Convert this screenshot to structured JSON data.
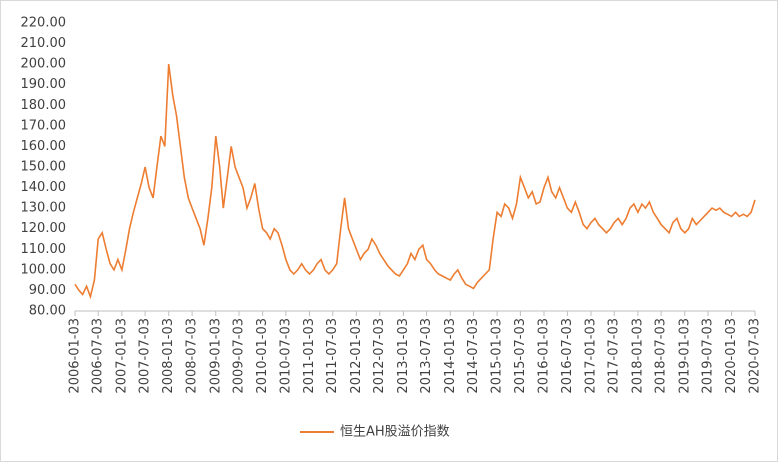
{
  "chart_data": {
    "type": "line",
    "series": [
      {
        "name": "恒生AH股溢价指数",
        "color": "#ED7D31",
        "values": [
          93,
          90,
          88,
          92,
          87,
          95,
          115,
          118,
          110,
          103,
          100,
          105,
          100,
          110,
          120,
          128,
          135,
          142,
          150,
          140,
          135,
          150,
          165,
          160,
          200,
          185,
          175,
          160,
          145,
          135,
          130,
          125,
          120,
          112,
          125,
          140,
          165,
          150,
          130,
          145,
          160,
          150,
          145,
          140,
          130,
          135,
          142,
          130,
          120,
          118,
          115,
          120,
          118,
          112,
          105,
          100,
          98,
          100,
          103,
          100,
          98,
          100,
          103,
          105,
          100,
          98,
          100,
          103,
          120,
          135,
          120,
          115,
          110,
          105,
          108,
          110,
          115,
          112,
          108,
          105,
          102,
          100,
          98,
          97,
          100,
          103,
          108,
          105,
          110,
          112,
          105,
          103,
          100,
          98,
          97,
          96,
          95,
          98,
          100,
          96,
          93,
          92,
          91,
          94,
          96,
          98,
          100,
          115,
          128,
          126,
          132,
          130,
          125,
          132,
          145,
          140,
          135,
          138,
          132,
          133,
          140,
          145,
          138,
          135,
          140,
          135,
          130,
          128,
          133,
          128,
          122,
          120,
          123,
          125,
          122,
          120,
          118,
          120,
          123,
          125,
          122,
          125,
          130,
          132,
          128,
          132,
          130,
          133,
          128,
          125,
          122,
          120,
          118,
          123,
          125,
          120,
          118,
          120,
          125,
          122,
          124,
          126,
          128,
          130,
          129,
          130,
          128,
          127,
          126,
          128,
          126,
          127,
          126,
          128,
          134
        ]
      }
    ],
    "x": [
      "2006-01-03",
      "2006-02-03",
      "2006-03-03",
      "2006-04-03",
      "2006-05-03",
      "2006-06-03",
      "2006-07-03",
      "2006-08-03",
      "2006-09-03",
      "2006-10-03",
      "2006-11-03",
      "2006-12-03",
      "2007-01-03",
      "2007-02-03",
      "2007-03-03",
      "2007-04-03",
      "2007-05-03",
      "2007-06-03",
      "2007-07-03",
      "2007-08-03",
      "2007-09-03",
      "2007-10-03",
      "2007-11-03",
      "2007-12-03",
      "2008-01-03",
      "2008-02-03",
      "2008-03-03",
      "2008-04-03",
      "2008-05-03",
      "2008-06-03",
      "2008-07-03",
      "2008-08-03",
      "2008-09-03",
      "2008-10-03",
      "2008-11-03",
      "2008-12-03",
      "2009-01-03",
      "2009-02-03",
      "2009-03-03",
      "2009-04-03",
      "2009-05-03",
      "2009-06-03",
      "2009-07-03",
      "2009-08-03",
      "2009-09-03",
      "2009-10-03",
      "2009-11-03",
      "2009-12-03",
      "2010-01-03",
      "2010-02-03",
      "2010-03-03",
      "2010-04-03",
      "2010-05-03",
      "2010-06-03",
      "2010-07-03",
      "2010-08-03",
      "2010-09-03",
      "2010-10-03",
      "2010-11-03",
      "2010-12-03",
      "2011-01-03",
      "2011-02-03",
      "2011-03-03",
      "2011-04-03",
      "2011-05-03",
      "2011-06-03",
      "2011-07-03",
      "2011-08-03",
      "2011-09-03",
      "2011-10-03",
      "2011-11-03",
      "2011-12-03",
      "2012-01-03",
      "2012-02-03",
      "2012-03-03",
      "2012-04-03",
      "2012-05-03",
      "2012-06-03",
      "2012-07-03",
      "2012-08-03",
      "2012-09-03",
      "2012-10-03",
      "2012-11-03",
      "2012-12-03",
      "2013-01-03",
      "2013-02-03",
      "2013-03-03",
      "2013-04-03",
      "2013-05-03",
      "2013-06-03",
      "2013-07-03",
      "2013-08-03",
      "2013-09-03",
      "2013-10-03",
      "2013-11-03",
      "2013-12-03",
      "2014-01-03",
      "2014-02-03",
      "2014-03-03",
      "2014-04-03",
      "2014-05-03",
      "2014-06-03",
      "2014-07-03",
      "2014-08-03",
      "2014-09-03",
      "2014-10-03",
      "2014-11-03",
      "2014-12-03",
      "2015-01-03",
      "2015-02-03",
      "2015-03-03",
      "2015-04-03",
      "2015-05-03",
      "2015-06-03",
      "2015-07-03",
      "2015-08-03",
      "2015-09-03",
      "2015-10-03",
      "2015-11-03",
      "2015-12-03",
      "2016-01-03",
      "2016-02-03",
      "2016-03-03",
      "2016-04-03",
      "2016-05-03",
      "2016-06-03",
      "2016-07-03",
      "2016-08-03",
      "2016-09-03",
      "2016-10-03",
      "2016-11-03",
      "2016-12-03",
      "2017-01-03",
      "2017-02-03",
      "2017-03-03",
      "2017-04-03",
      "2017-05-03",
      "2017-06-03",
      "2017-07-03",
      "2017-08-03",
      "2017-09-03",
      "2017-10-03",
      "2017-11-03",
      "2017-12-03",
      "2018-01-03",
      "2018-02-03",
      "2018-03-03",
      "2018-04-03",
      "2018-05-03",
      "2018-06-03",
      "2018-07-03",
      "2018-08-03",
      "2018-09-03",
      "2018-10-03",
      "2018-11-03",
      "2018-12-03",
      "2019-01-03",
      "2019-02-03",
      "2019-03-03",
      "2019-04-03",
      "2019-05-03",
      "2019-06-03",
      "2019-07-03",
      "2019-08-03",
      "2019-09-03",
      "2019-10-03",
      "2019-11-03",
      "2019-12-03",
      "2020-01-03",
      "2020-02-03",
      "2020-03-03",
      "2020-04-03",
      "2020-05-03",
      "2020-06-03",
      "2020-07-03"
    ],
    "xlim": [
      "2006-01-03",
      "2020-07-03"
    ],
    "xticks": [
      "2006-01-03",
      "2006-07-03",
      "2007-01-03",
      "2007-07-03",
      "2008-01-03",
      "2008-07-03",
      "2009-01-03",
      "2009-07-03",
      "2010-01-03",
      "2010-07-03",
      "2011-01-03",
      "2011-07-03",
      "2012-01-03",
      "2012-07-03",
      "2013-01-03",
      "2013-07-03",
      "2014-01-03",
      "2014-07-03",
      "2015-01-03",
      "2015-07-03",
      "2016-01-03",
      "2016-07-03",
      "2017-01-03",
      "2017-07-03",
      "2018-01-03",
      "2018-07-03",
      "2019-01-03",
      "2019-07-03",
      "2020-01-03",
      "2020-07-03"
    ],
    "ylim": [
      80,
      220
    ],
    "yticks": [
      {
        "value": 80,
        "label": "80.00"
      },
      {
        "value": 90,
        "label": "90.00"
      },
      {
        "value": 100,
        "label": "100.00"
      },
      {
        "value": 110,
        "label": "110.00"
      },
      {
        "value": 120,
        "label": "120.00"
      },
      {
        "value": 130,
        "label": "130.00"
      },
      {
        "value": 140,
        "label": "140.00"
      },
      {
        "value": 150,
        "label": "150.00"
      },
      {
        "value": 160,
        "label": "160.00"
      },
      {
        "value": 170,
        "label": "170.00"
      },
      {
        "value": 180,
        "label": "180.00"
      },
      {
        "value": 190,
        "label": "190.00"
      },
      {
        "value": 200,
        "label": "200.00"
      },
      {
        "value": 210,
        "label": "210.00"
      },
      {
        "value": 220,
        "label": "220.00"
      }
    ],
    "legend": "bottom"
  }
}
